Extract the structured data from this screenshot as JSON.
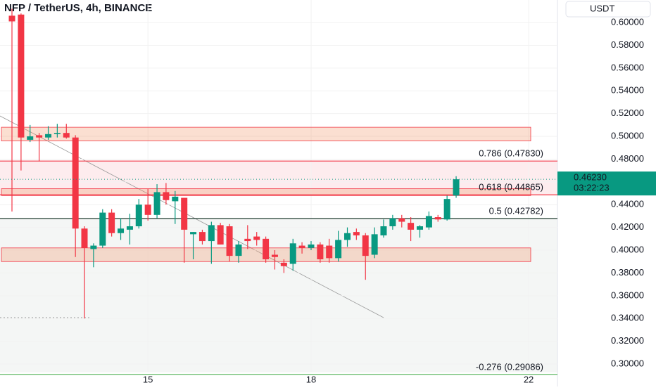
{
  "chart_data": {
    "type": "candlestick",
    "title": "NFP / TetherUS, 4h, BINANCE",
    "currency": "USDT",
    "up_color": "#089981",
    "down_color": "#f23645",
    "x": [
      12.5,
      12.667,
      12.833,
      13,
      13.167,
      13.333,
      13.5,
      13.667,
      13.833,
      14,
      14.167,
      14.333,
      14.5,
      14.667,
      14.833,
      15,
      15.167,
      15.333,
      15.5,
      15.667,
      15.833,
      16,
      16.167,
      16.333,
      16.5,
      16.667,
      16.833,
      17,
      17.167,
      17.333,
      17.5,
      17.667,
      17.833,
      18,
      18.167,
      18.333,
      18.5,
      18.667,
      18.833,
      19,
      19.167,
      19.333,
      19.5,
      19.667,
      19.833,
      20,
      20.167,
      20.333,
      20.5,
      20.667
    ],
    "open": [
      0.606,
      0.607,
      0.497,
      0.501,
      0.499,
      0.502,
      0.503,
      0.499,
      0.419,
      0.401,
      0.404,
      0.433,
      0.415,
      0.418,
      0.421,
      0.44,
      0.431,
      0.451,
      0.443,
      0.446,
      0.414,
      0.416,
      0.408,
      0.422,
      0.421,
      0.395,
      0.41,
      0.412,
      0.41,
      0.396,
      0.389,
      0.388,
      0.404,
      0.402,
      0.405,
      0.404,
      0.393,
      0.409,
      0.416,
      0.413,
      0.396,
      0.413,
      0.421,
      0.428,
      0.424,
      0.418,
      0.42,
      0.429,
      0.427,
      0.448
    ],
    "high": [
      0.612,
      0.608,
      0.51,
      0.503,
      0.509,
      0.511,
      0.511,
      0.501,
      0.421,
      0.406,
      0.436,
      0.436,
      0.428,
      0.432,
      0.445,
      0.454,
      0.458,
      0.459,
      0.452,
      0.446,
      0.416,
      0.418,
      0.425,
      0.424,
      0.423,
      0.408,
      0.422,
      0.416,
      0.412,
      0.4,
      0.392,
      0.41,
      0.407,
      0.408,
      0.407,
      0.41,
      0.417,
      0.42,
      0.419,
      0.415,
      0.42,
      0.427,
      0.431,
      0.431,
      0.429,
      0.422,
      0.434,
      0.431,
      0.448,
      0.465
    ],
    "low": [
      0.434,
      0.47,
      0.495,
      0.478,
      0.497,
      0.499,
      0.498,
      0.394,
      0.34,
      0.385,
      0.402,
      0.412,
      0.409,
      0.405,
      0.419,
      0.426,
      0.428,
      0.44,
      0.423,
      0.389,
      0.392,
      0.405,
      0.388,
      0.405,
      0.39,
      0.389,
      0.401,
      0.404,
      0.389,
      0.383,
      0.38,
      0.382,
      0.397,
      0.4,
      0.389,
      0.389,
      0.39,
      0.403,
      0.409,
      0.374,
      0.393,
      0.411,
      0.418,
      0.42,
      0.408,
      0.411,
      0.418,
      0.425,
      0.426,
      0.446
    ],
    "close": [
      0.601,
      0.499,
      0.5,
      0.499,
      0.502,
      0.503,
      0.499,
      0.419,
      0.402,
      0.404,
      0.433,
      0.415,
      0.419,
      0.421,
      0.44,
      0.431,
      0.451,
      0.444,
      0.447,
      0.418,
      0.416,
      0.408,
      0.422,
      0.405,
      0.395,
      0.405,
      0.408,
      0.409,
      0.392,
      0.394,
      0.386,
      0.406,
      0.402,
      0.405,
      0.392,
      0.393,
      0.409,
      0.415,
      0.413,
      0.395,
      0.414,
      0.421,
      0.428,
      0.425,
      0.418,
      0.421,
      0.43,
      0.427,
      0.445,
      0.4623
    ],
    "xlim": [
      12.28,
      22.53
    ],
    "xticks": [
      15,
      18,
      22
    ],
    "ylim": [
      0.2926,
      0.6198
    ],
    "yticks": [
      {
        "value": 0.3,
        "label": "0.30000"
      },
      {
        "value": 0.32,
        "label": "0.32000"
      },
      {
        "value": 0.34,
        "label": "0.34000"
      },
      {
        "value": 0.36,
        "label": "0.36000"
      },
      {
        "value": 0.38,
        "label": "0.38000"
      },
      {
        "value": 0.4,
        "label": "0.40000"
      },
      {
        "value": 0.42,
        "label": "0.42000"
      },
      {
        "value": 0.44,
        "label": "0.44000"
      },
      {
        "value": 0.46,
        "label": "0.46000"
      },
      {
        "value": 0.48,
        "label": "0.48000"
      },
      {
        "value": 0.5,
        "label": "0.50000"
      },
      {
        "value": 0.52,
        "label": "0.52000"
      },
      {
        "value": 0.54,
        "label": "0.54000"
      },
      {
        "value": 0.56,
        "label": "0.56000"
      },
      {
        "value": 0.58,
        "label": "0.58000"
      },
      {
        "value": 0.6,
        "label": "0.60000"
      }
    ],
    "levels": [
      {
        "label": "0.786 (0.47830)",
        "price": 0.4783,
        "color": "#f23645"
      },
      {
        "label": "0.618 (0.44865)",
        "price": 0.44865,
        "color": "#f23645"
      },
      {
        "label": "0.5 (0.42782)",
        "price": 0.42782,
        "color": "#1e3a2f"
      },
      {
        "label": "-0.276 (0.29086)",
        "price": 0.29086,
        "color": "#4caf50"
      }
    ],
    "zones": [
      {
        "low": 0.496,
        "high": 0.508
      },
      {
        "low": 0.448,
        "high": 0.454
      },
      {
        "low": 0.39,
        "high": 0.402
      }
    ],
    "last_price": {
      "value": 0.4623,
      "label": "0.46230"
    },
    "countdown": "03:22:23"
  }
}
